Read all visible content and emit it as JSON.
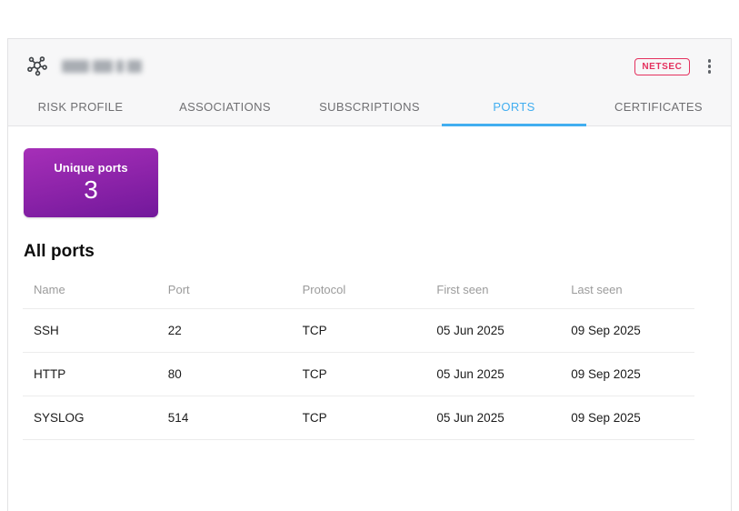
{
  "header": {
    "asset_icon": "network-node-icon",
    "asset_name_redacted": true,
    "badge_label": "NETSEC",
    "menu_icon": "kebab-menu-icon"
  },
  "tabs": [
    {
      "label": "RISK PROFILE",
      "active": false
    },
    {
      "label": "ASSOCIATIONS",
      "active": false
    },
    {
      "label": "SUBSCRIPTIONS",
      "active": false
    },
    {
      "label": "PORTS",
      "active": true
    },
    {
      "label": "CERTIFICATES",
      "active": false
    }
  ],
  "summary_card": {
    "label": "Unique ports",
    "value": "3"
  },
  "section_title": "All ports",
  "table": {
    "columns": [
      "Name",
      "Port",
      "Protocol",
      "First seen",
      "Last seen"
    ],
    "rows": [
      [
        "SSH",
        "22",
        "TCP",
        "05 Jun 2025",
        "09 Sep 2025"
      ],
      [
        "HTTP",
        "80",
        "TCP",
        "05 Jun 2025",
        "09 Sep 2025"
      ],
      [
        "SYSLOG",
        "514",
        "TCP",
        "05 Jun 2025",
        "09 Sep 2025"
      ]
    ]
  },
  "colors": {
    "accent_blue": "#42AEF0",
    "badge_pink": "#E4315E",
    "purple_top": "#A62FB8",
    "purple_mid": "#8E24AA",
    "purple_bottom": "#72189B"
  }
}
